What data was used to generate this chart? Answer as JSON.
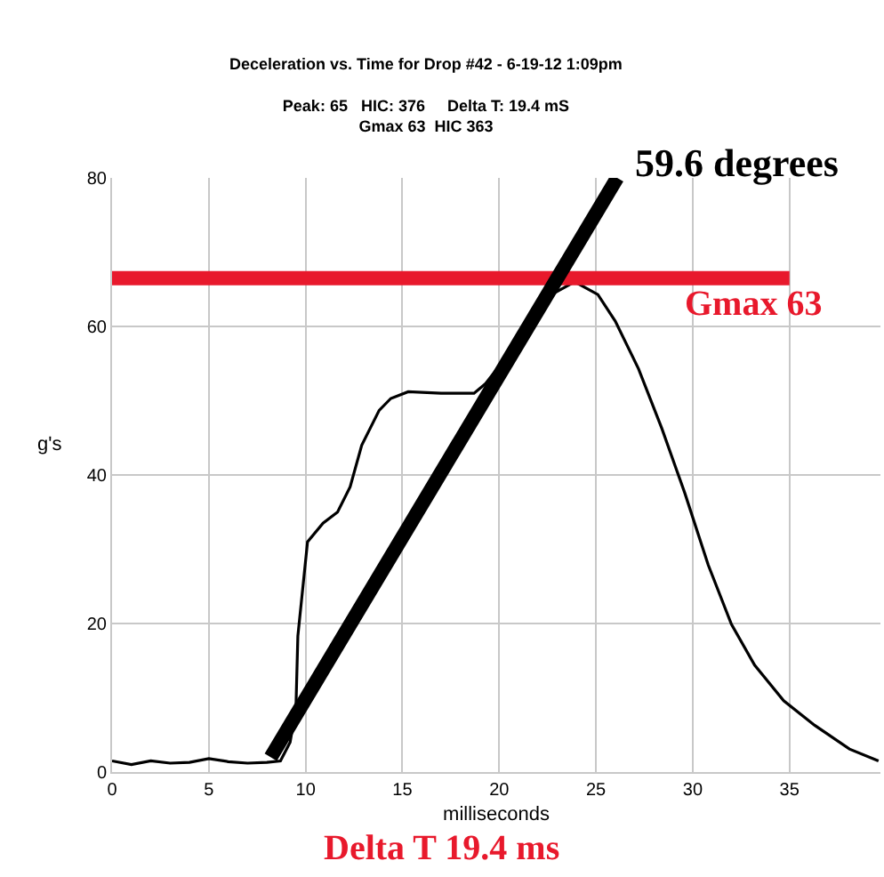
{
  "chart_data": {
    "type": "line",
    "title": "Deceleration vs. Time for Drop #42 - 6-19-12 1:09pm",
    "subtitle": "Peak: 65   HIC: 376     Delta T: 19.4 mS\nGmax 63  HIC 363",
    "xlabel": "milliseconds",
    "ylabel": "g's",
    "series": [
      {
        "color": "#000000",
        "x": [
          0,
          1,
          2,
          3,
          4,
          5,
          6,
          7,
          8,
          8.7,
          9.2,
          9.5,
          9.6,
          10.1,
          10.9,
          11.65,
          12.3,
          12.9,
          13.8,
          14.4,
          15.3,
          17,
          18.7,
          19.3,
          21,
          22.5,
          23.9,
          25.1,
          26.0,
          27.2,
          28.4,
          29.6,
          30.8,
          32.0,
          33.2,
          34.7,
          36.3,
          38.1,
          39.6
        ],
        "values": [
          1.5,
          1,
          1.5,
          1.2,
          1.3,
          1.8,
          1.4,
          1.2,
          1.3,
          1.5,
          4,
          8.6,
          18.3,
          31,
          33.5,
          35,
          38.4,
          44,
          48.7,
          50.3,
          51.2,
          51,
          51,
          52.3,
          58,
          64,
          66,
          64.3,
          60.7,
          54.3,
          46.3,
          37.5,
          27.9,
          19.9,
          14.4,
          9.6,
          6.3,
          3.1,
          1.5
        ]
      },
      {
        "color": "#e8192c",
        "x": [
          0,
          35
        ],
        "values": [
          66.5,
          66.5
        ]
      },
      {
        "color": "#000000",
        "x": [
          8.2,
          26.1
        ],
        "values": [
          2,
          80
        ]
      }
    ],
    "annotations": [
      {
        "text": "59.6 degrees",
        "x": 26.1,
        "y": 80
      },
      "Gmax 63",
      "Delta T 19.4 ms"
    ],
    "xlim": [
      0,
      39.7
    ],
    "ylim": [
      0,
      80
    ],
    "xticks": [
      0,
      5,
      10,
      15,
      20,
      25,
      30,
      35
    ],
    "yticks": [
      0,
      20,
      40,
      60,
      80
    ],
    "grid": true,
    "marker": "none",
    "line_style": "solid"
  }
}
